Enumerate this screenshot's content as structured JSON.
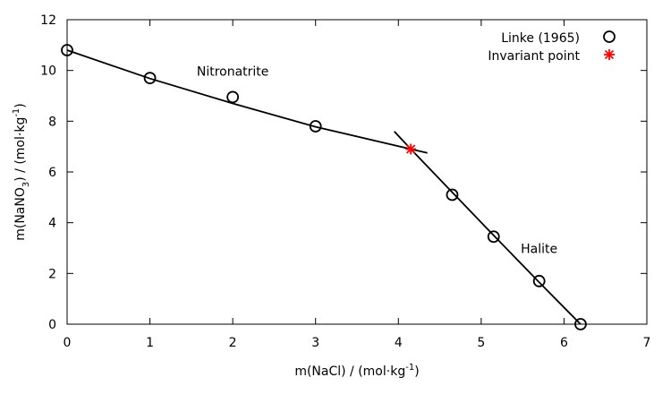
{
  "chart_data": {
    "type": "scatter",
    "xlabel": {
      "text": "m(NaCl) / (mol·kg",
      "sup": "-1",
      "tail": ")"
    },
    "ylabel": {
      "pre": "m(NaNO",
      "sub": "3",
      "mid": ") / (mol·kg",
      "sup": "-1",
      "tail": ")"
    },
    "xlim": [
      0,
      7
    ],
    "ylim": [
      0,
      12
    ],
    "xticks": [
      0,
      1,
      2,
      3,
      4,
      5,
      6,
      7
    ],
    "yticks": [
      0,
      2,
      4,
      6,
      8,
      10,
      12
    ],
    "grid": false,
    "legend_position": "top-right",
    "series": [
      {
        "name": "Linke (1965)",
        "marker": "open-circle",
        "color": "#000000",
        "points": [
          [
            0.0,
            10.8
          ],
          [
            1.0,
            9.7
          ],
          [
            2.0,
            8.95
          ],
          [
            3.0,
            7.8
          ],
          [
            4.65,
            5.1
          ],
          [
            5.15,
            3.45
          ],
          [
            5.7,
            1.7
          ],
          [
            6.2,
            0.0
          ]
        ]
      },
      {
        "name": "Invariant point",
        "marker": "asterisk",
        "color": "#ff0000",
        "points": [
          [
            4.15,
            6.9
          ]
        ]
      }
    ],
    "curves": [
      {
        "name": "nitronatrite-curve",
        "color": "#000000",
        "points": [
          [
            0.0,
            10.8
          ],
          [
            1.0,
            9.68
          ],
          [
            2.0,
            8.7
          ],
          [
            3.0,
            7.78
          ],
          [
            4.15,
            6.9
          ],
          [
            4.35,
            6.75
          ]
        ]
      },
      {
        "name": "halite-curve",
        "color": "#000000",
        "points": [
          [
            3.95,
            7.6
          ],
          [
            4.15,
            6.9
          ],
          [
            4.65,
            5.2
          ],
          [
            5.15,
            3.5
          ],
          [
            5.7,
            1.65
          ],
          [
            6.2,
            0.0
          ]
        ]
      }
    ],
    "annotations": [
      {
        "name": "nitronatrite-label",
        "text": "Nitronatrite",
        "x": 2.0,
        "y": 9.8
      },
      {
        "name": "halite-label",
        "text": "Halite",
        "x": 5.7,
        "y": 2.8
      }
    ]
  }
}
